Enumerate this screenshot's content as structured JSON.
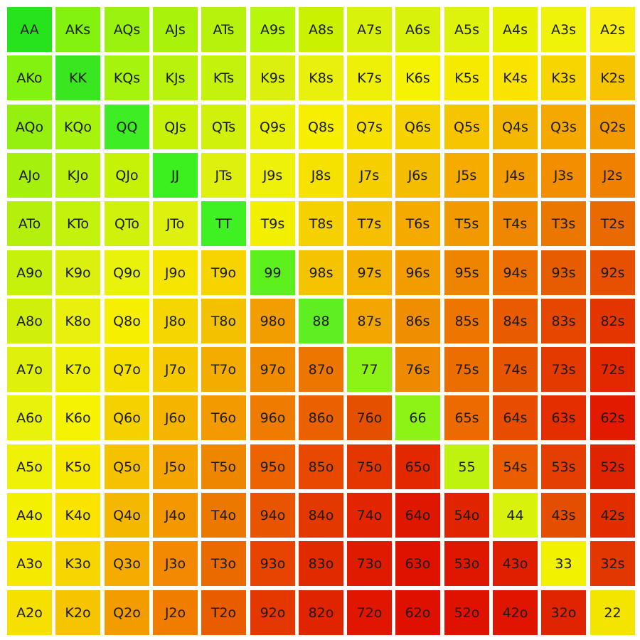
{
  "chart_data": {
    "type": "heatmap",
    "rows": [
      [
        "AA",
        "AKs",
        "AQs",
        "AJs",
        "ATs",
        "A9s",
        "A8s",
        "A7s",
        "A6s",
        "A5s",
        "A4s",
        "A3s",
        "A2s"
      ],
      [
        "AKo",
        "KK",
        "KQs",
        "KJs",
        "KTs",
        "K9s",
        "K8s",
        "K7s",
        "K6s",
        "K5s",
        "K4s",
        "K3s",
        "K2s"
      ],
      [
        "AQo",
        "KQo",
        "QQ",
        "QJs",
        "QTs",
        "Q9s",
        "Q8s",
        "Q7s",
        "Q6s",
        "Q5s",
        "Q4s",
        "Q3s",
        "Q2s"
      ],
      [
        "AJo",
        "KJo",
        "QJo",
        "JJ",
        "JTs",
        "J9s",
        "J8s",
        "J7s",
        "J6s",
        "J5s",
        "J4s",
        "J3s",
        "J2s"
      ],
      [
        "ATo",
        "KTo",
        "QTo",
        "JTo",
        "TT",
        "T9s",
        "T8s",
        "T7s",
        "T6s",
        "T5s",
        "T4s",
        "T3s",
        "T2s"
      ],
      [
        "A9o",
        "K9o",
        "Q9o",
        "J9o",
        "T9o",
        "99",
        "98s",
        "97s",
        "96s",
        "95s",
        "94s",
        "93s",
        "92s"
      ],
      [
        "A8o",
        "K8o",
        "Q8o",
        "J8o",
        "T8o",
        "98o",
        "88",
        "87s",
        "86s",
        "85s",
        "84s",
        "83s",
        "82s"
      ],
      [
        "A7o",
        "K7o",
        "Q7o",
        "J7o",
        "T7o",
        "97o",
        "87o",
        "77",
        "76s",
        "75s",
        "74s",
        "73s",
        "72s"
      ],
      [
        "A6o",
        "K6o",
        "Q6o",
        "J6o",
        "T6o",
        "96o",
        "86o",
        "76o",
        "66",
        "65s",
        "64s",
        "63s",
        "62s"
      ],
      [
        "A5o",
        "K5o",
        "Q5o",
        "J5o",
        "T5o",
        "95o",
        "85o",
        "75o",
        "65o",
        "55",
        "54s",
        "53s",
        "52s"
      ],
      [
        "A4o",
        "K4o",
        "Q4o",
        "J4o",
        "T4o",
        "94o",
        "84o",
        "74o",
        "64o",
        "54o",
        "44",
        "43s",
        "42s"
      ],
      [
        "A3o",
        "K3o",
        "Q3o",
        "J3o",
        "T3o",
        "93o",
        "83o",
        "73o",
        "63o",
        "53o",
        "43o",
        "33",
        "32s"
      ],
      [
        "A2o",
        "K2o",
        "Q2o",
        "J2o",
        "T2o",
        "92o",
        "82o",
        "72o",
        "62o",
        "52o",
        "42o",
        "32o",
        "22"
      ]
    ],
    "colors": [
      [
        "#27e31c",
        "#84f20f",
        "#9af20e",
        "#a9f20a",
        "#b7f20c",
        "#b8f70b",
        "#caf200",
        "#d8f20c",
        "#d8f20c",
        "#def30b",
        "#e6f200",
        "#eff30a",
        "#f6ef10"
      ],
      [
        "#84f20f",
        "#3ae61f",
        "#a6f30d",
        "#b9f20d",
        "#c3f20d",
        "#dcf00f",
        "#e9f00b",
        "#eef107",
        "#f5f202",
        "#f6ea00",
        "#fbe300",
        "#f6d500",
        "#f6c400"
      ],
      [
        "#95f00f",
        "#a6f30d",
        "#3fed24",
        "#c6f207",
        "#d0f10b",
        "#e8f20b",
        "#f6ef00",
        "#f6e100",
        "#f6d300",
        "#f6c500",
        "#f5b800",
        "#f5a900",
        "#f29a00"
      ],
      [
        "#a5f00d",
        "#b9f20d",
        "#c6f207",
        "#3cf020",
        "#def00e",
        "#eef10a",
        "#f6e200",
        "#f6cf00",
        "#f5bd00",
        "#f5ab00",
        "#f39d00",
        "#f28e00",
        "#f08000"
      ],
      [
        "#b5f00c",
        "#c3f20d",
        "#d0f10b",
        "#def00e",
        "#3ff023",
        "#f2f000",
        "#f6d100",
        "#f6bf00",
        "#f5aa00",
        "#f39900",
        "#f08700",
        "#ec7700",
        "#e96a00"
      ],
      [
        "#c6f10a",
        "#dcf00f",
        "#e8f20b",
        "#f6e500",
        "#f7d300",
        "#5cf01d",
        "#f5c400",
        "#f5b100",
        "#f39c00",
        "#ee8400",
        "#ec6f00",
        "#e85c00",
        "#e65000"
      ],
      [
        "#d0f00b",
        "#e9f00b",
        "#f6ef00",
        "#f6d600",
        "#f4c100",
        "#f39e00",
        "#5fee21",
        "#f3a600",
        "#ef8e00",
        "#ed7500",
        "#e95b00",
        "#e54700",
        "#e43400"
      ],
      [
        "#def00b",
        "#eef107",
        "#f6e000",
        "#f5c800",
        "#f3ac00",
        "#f08b00",
        "#ed7600",
        "#8df215",
        "#ef8900",
        "#ed6e00",
        "#e85500",
        "#e43a00",
        "#e32800"
      ],
      [
        "#e8f20b",
        "#f5f202",
        "#f6d100",
        "#f5b400",
        "#f29a00",
        "#ee7c00",
        "#e96100",
        "#e54f00",
        "#8df215",
        "#ed6a00",
        "#e84c00",
        "#e42e00",
        "#e21b00"
      ],
      [
        "#eff207",
        "#f6ea00",
        "#f6c200",
        "#f5a500",
        "#ef8600",
        "#ec6400",
        "#e84900",
        "#e53600",
        "#e32800",
        "#bff30f",
        "#ea5d00",
        "#e43e00",
        "#e12400"
      ],
      [
        "#f3f100",
        "#fbe300",
        "#f5b800",
        "#f39800",
        "#ed7800",
        "#e85400",
        "#e33900",
        "#e22400",
        "#e01700",
        "#e02400",
        "#d9f20c",
        "#e34e00",
        "#e12d00"
      ],
      [
        "#f6e900",
        "#f6d500",
        "#f5ab00",
        "#f28900",
        "#eb6a00",
        "#e64400",
        "#e22a00",
        "#e01a00",
        "#df1200",
        "#df1700",
        "#e01f00",
        "#f2f200",
        "#e33700"
      ],
      [
        "#f6e000",
        "#f6c400",
        "#f39c00",
        "#f07d00",
        "#e95c00",
        "#e43800",
        "#e12400",
        "#e01600",
        "#df1000",
        "#df1200",
        "#e01500",
        "#e02400",
        "#f4e500"
      ]
    ]
  }
}
